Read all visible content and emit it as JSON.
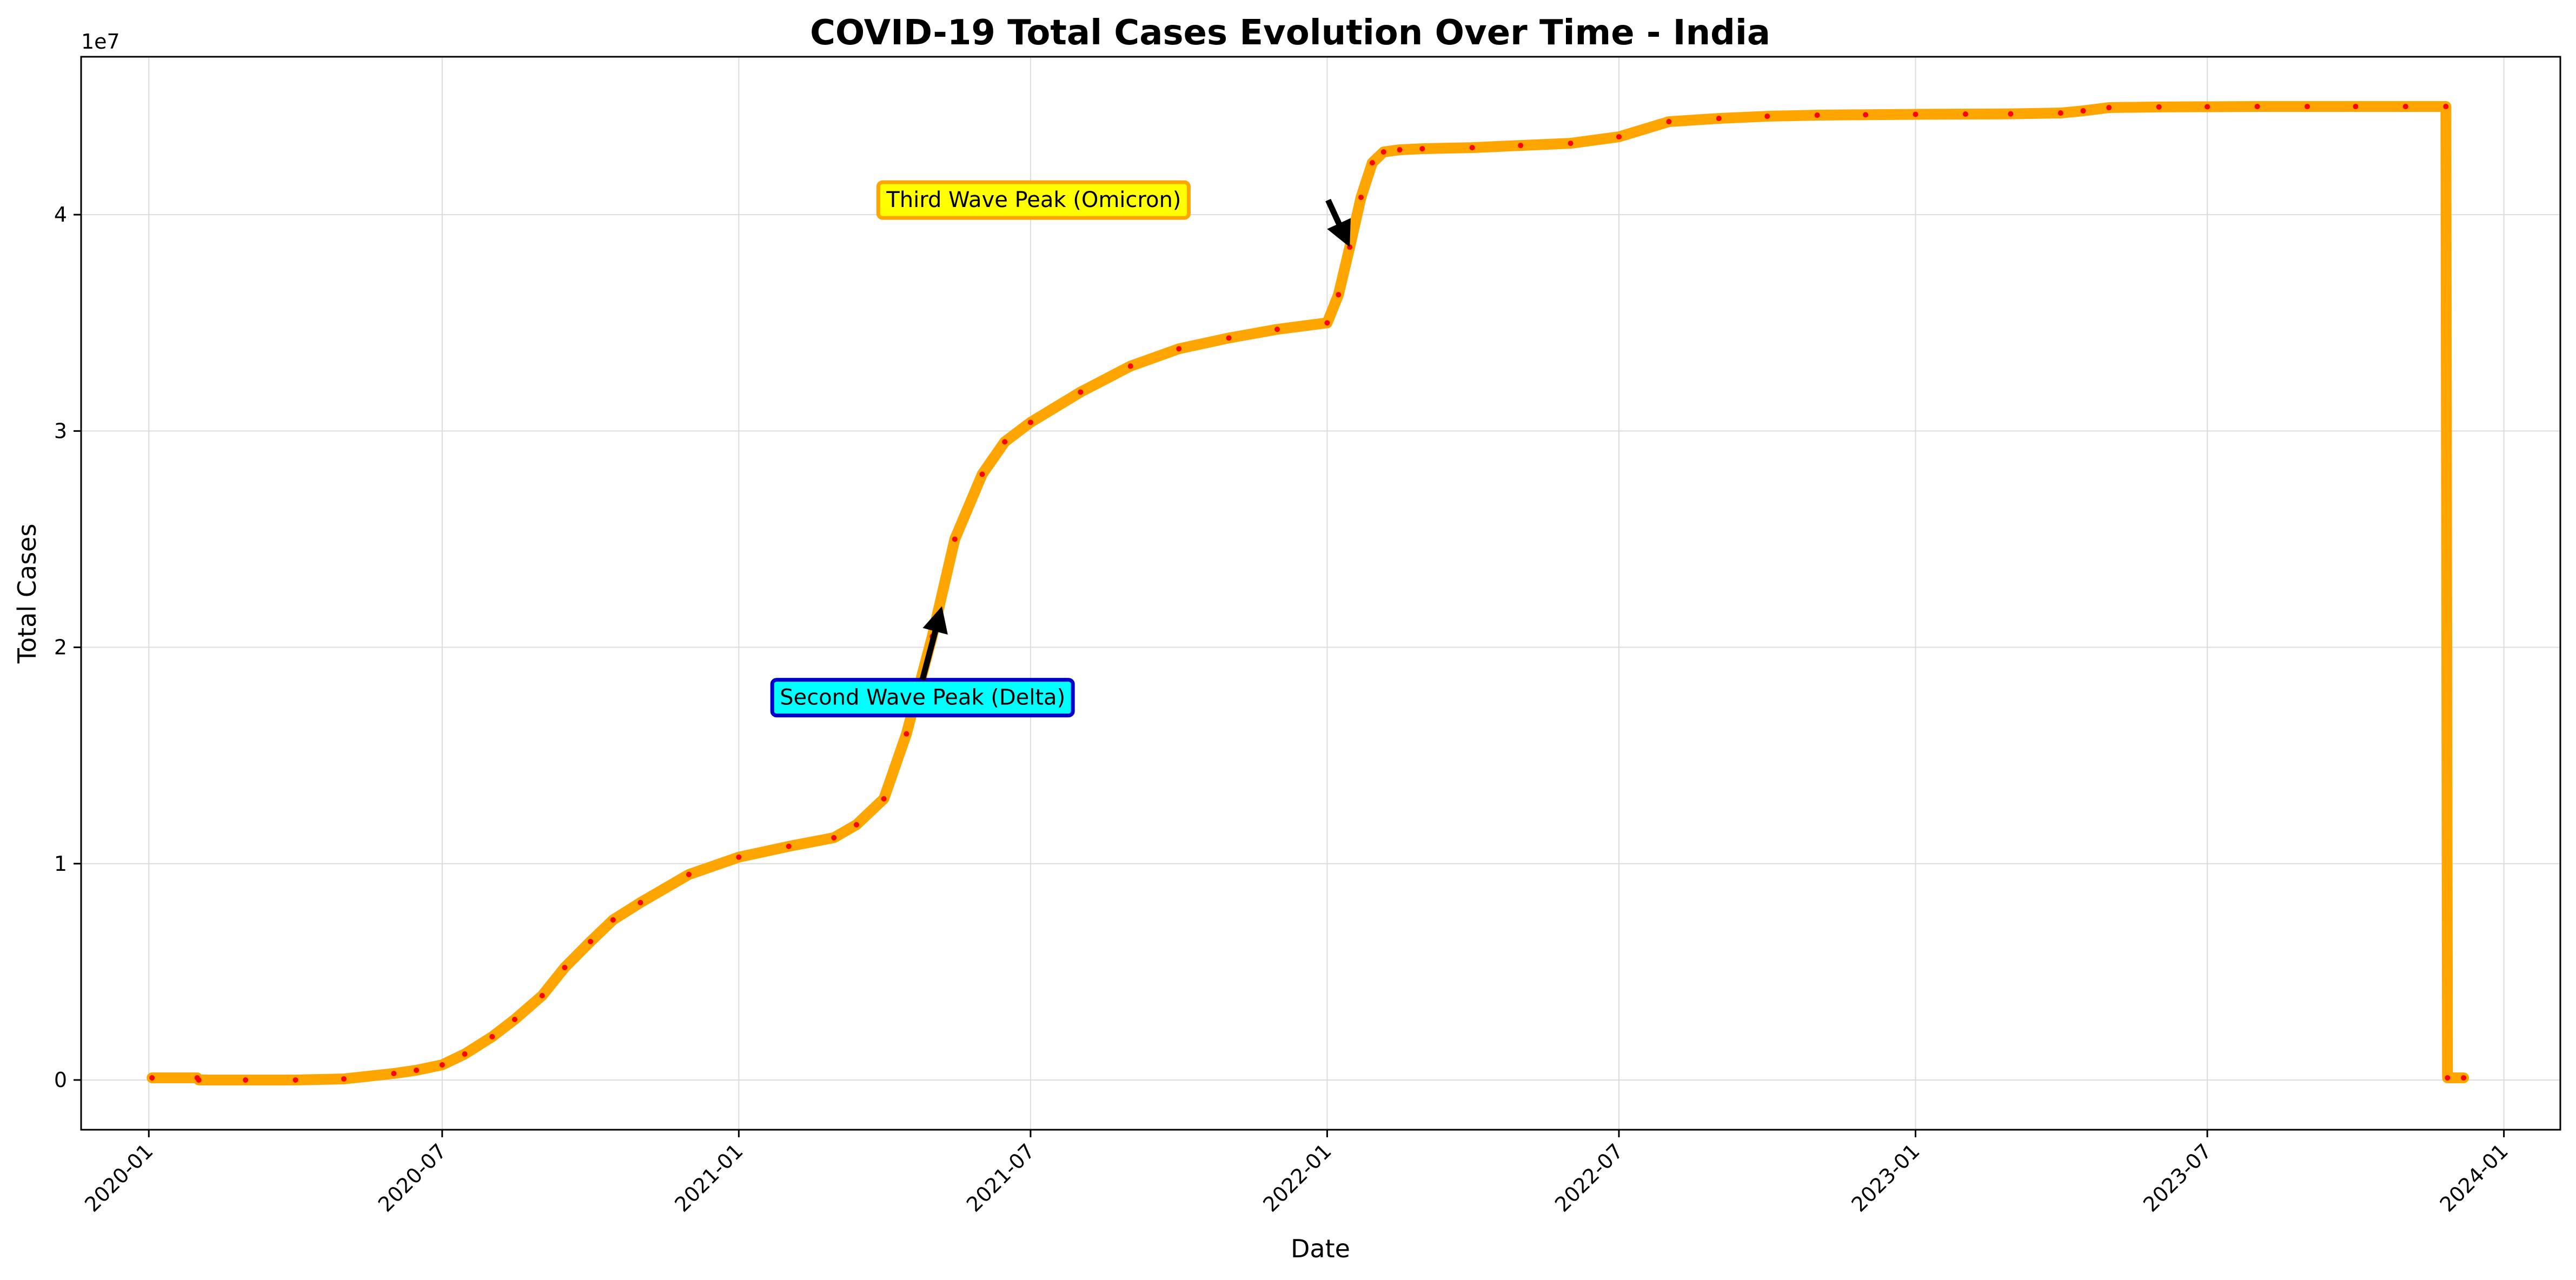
{
  "chart_data": {
    "type": "line",
    "title": "COVID-19 Total Cases Evolution Over Time - India",
    "xlabel": "Date",
    "ylabel": "Total Cases",
    "y_offset_label": "1e7",
    "xlim": [
      "2019-11-20",
      "2024-02-05"
    ],
    "ylim": [
      -2300000,
      47300000
    ],
    "x_ticks": [
      "2020-01",
      "2020-07",
      "2021-01",
      "2021-07",
      "2022-01",
      "2022-07",
      "2023-01",
      "2023-07",
      "2024-01"
    ],
    "y_ticks": [
      0,
      10000000,
      20000000,
      30000000,
      40000000
    ],
    "y_tick_labels": [
      "0",
      "1",
      "2",
      "3",
      "4"
    ],
    "grid": true,
    "colors": {
      "line": "#FFA500",
      "marker": "#FF0000"
    },
    "series": [
      {
        "x": [
          "2020-01-03",
          "2020-01-31",
          "2020-02-01",
          "2020-03-01",
          "2020-04-01",
          "2020-05-01",
          "2020-06-01",
          "2020-06-15",
          "2020-07-01",
          "2020-07-15",
          "2020-08-01",
          "2020-08-15",
          "2020-09-01",
          "2020-09-15",
          "2020-10-01",
          "2020-10-15",
          "2020-11-01",
          "2020-12-01",
          "2021-01-01",
          "2021-02-01",
          "2021-03-01",
          "2021-03-15",
          "2021-04-01",
          "2021-04-15",
          "2021-05-01",
          "2021-05-15",
          "2021-06-01",
          "2021-06-15",
          "2021-07-01",
          "2021-08-01",
          "2021-09-01",
          "2021-10-01",
          "2021-11-01",
          "2021-12-01",
          "2022-01-01",
          "2022-01-08",
          "2022-01-15",
          "2022-01-22",
          "2022-01-29",
          "2022-02-05",
          "2022-02-15",
          "2022-03-01",
          "2022-04-01",
          "2022-05-01",
          "2022-06-01",
          "2022-07-01",
          "2022-08-01",
          "2022-09-01",
          "2022-10-01",
          "2022-11-01",
          "2022-12-01",
          "2023-01-01",
          "2023-02-01",
          "2023-03-01",
          "2023-04-01",
          "2023-04-15",
          "2023-05-01",
          "2023-06-01",
          "2023-07-01",
          "2023-08-01",
          "2023-09-01",
          "2023-10-01",
          "2023-11-01",
          "2023-11-26",
          "2023-11-27",
          "2023-12-07"
        ],
        "y": [
          100000,
          100000,
          0,
          0,
          0,
          50000,
          300000,
          450000,
          700000,
          1200000,
          2000000,
          2800000,
          3900000,
          5200000,
          6400000,
          7400000,
          8200000,
          9500000,
          10300000,
          10800000,
          11200000,
          11800000,
          13000000,
          16000000,
          20500000,
          25000000,
          28000000,
          29500000,
          30400000,
          31800000,
          33000000,
          33800000,
          34300000,
          34700000,
          35000000,
          36300000,
          38500000,
          40800000,
          42400000,
          42900000,
          43000000,
          43050000,
          43100000,
          43200000,
          43300000,
          43600000,
          44300000,
          44450000,
          44550000,
          44600000,
          44620000,
          44640000,
          44650000,
          44660000,
          44700000,
          44800000,
          44950000,
          44980000,
          44990000,
          45000000,
          45000000,
          45000000,
          45000000,
          45000000,
          100000,
          100000
        ]
      }
    ],
    "annotations": [
      {
        "text": "Second Wave Peak (Delta)",
        "x": "2021-04-25",
        "y": 17700000,
        "arrow_to_x": "2021-05-07",
        "arrow_to_y": 21900000,
        "box_color": "#00FFFF",
        "border_color": "#0000CC"
      },
      {
        "text": "Third Wave Peak (Omicron)",
        "x": "2021-07-03",
        "y": 40700000,
        "arrow_to_x": "2022-01-15",
        "arrow_to_y": 38500000,
        "box_color": "#FFFF00",
        "border_color": "#FFA500"
      }
    ]
  }
}
